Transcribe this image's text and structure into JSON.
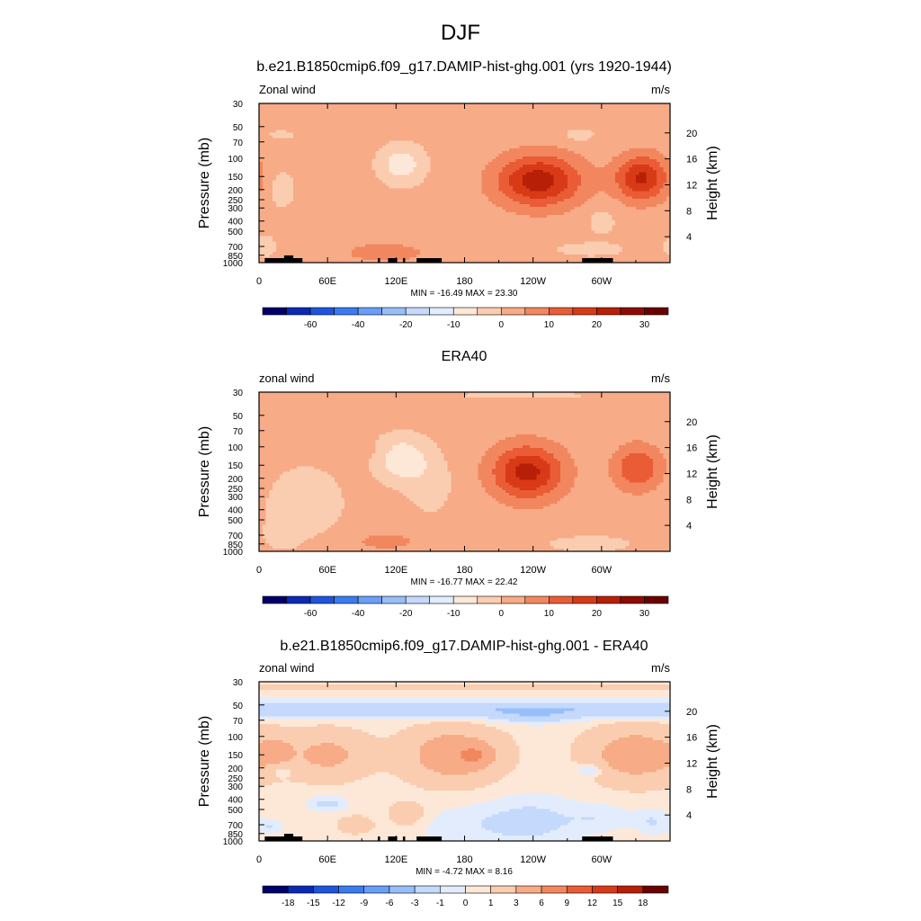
{
  "figure_title": "DJF",
  "colors": {
    "standard_scale": [
      "#00006a",
      "#0a2ab4",
      "#1f55dc",
      "#3a7cf0",
      "#6a9ef8",
      "#98bef9",
      "#c4d9fb",
      "#e2ecfd",
      "#fde8d8",
      "#fbcdb0",
      "#f7ab87",
      "#f2875f",
      "#ea5c36",
      "#d83a17",
      "#b71f07",
      "#8d0b02",
      "#6a0000"
    ],
    "difference_scale": [
      "#00006a",
      "#0a2ab4",
      "#1f55dc",
      "#3a7cf0",
      "#6a9ef8",
      "#98bef9",
      "#c4d9fb",
      "#e2ecfd",
      "#fde8d8",
      "#fbcdb0",
      "#f7ab87",
      "#f2875f",
      "#ea5c36",
      "#d83a17",
      "#b71f07",
      "#6a0000"
    ]
  },
  "chart_data": [
    {
      "type": "heatmap",
      "title": "b.e21.B1850cmip6.f09_g17.DAMIP-hist-ghg.001 (yrs 1920-1944)",
      "left_label": "Zonal wind",
      "right_label": "m/s",
      "ylabel": "Pressure (mb)",
      "ylabel_right": "Height (km)",
      "x_ticks": [
        "0",
        "60E",
        "120E",
        "180",
        "120W",
        "60W"
      ],
      "x_tick_values": [
        0,
        60,
        120,
        180,
        240,
        300
      ],
      "xlim": [
        0,
        360
      ],
      "y_ticks": [
        "30",
        "50",
        "70",
        "100",
        "150",
        "200",
        "250",
        "300",
        "400",
        "500",
        "700",
        "850",
        "1000"
      ],
      "y_tick_values": [
        30,
        50,
        70,
        100,
        150,
        200,
        250,
        300,
        400,
        500,
        700,
        850,
        1000
      ],
      "ylim": [
        30,
        1000
      ],
      "y_scale": "log",
      "height_ticks": [
        "20",
        "16",
        "12",
        "8",
        "4"
      ],
      "height_tick_values": [
        20,
        16,
        12,
        8,
        4
      ],
      "stats": "MIN = -16.49  MAX =  23.30",
      "min": -16.49,
      "max": 23.3,
      "colorbar_ticks": [
        "-60",
        "-40",
        "-20",
        "-10",
        "0",
        "10",
        "20",
        "30"
      ],
      "colorbar_levels": [
        -70,
        -60,
        -50,
        -40,
        -30,
        -20,
        -15,
        -10,
        -5,
        0,
        5,
        10,
        15,
        20,
        25,
        30,
        35
      ],
      "background": 2,
      "features": [
        {
          "lon": 245,
          "p": 165,
          "slon": 26,
          "slp": 0.4,
          "amp": 21
        },
        {
          "lon": 335,
          "p": 155,
          "slon": 16,
          "slp": 0.35,
          "amp": 19
        },
        {
          "lon": 300,
          "p": 400,
          "slon": 10,
          "slp": 0.25,
          "amp": -4
        },
        {
          "lon": 125,
          "p": 115,
          "slon": 14,
          "slp": 0.3,
          "amp": -10
        },
        {
          "lon": 20,
          "p": 200,
          "slon": 8,
          "slp": 0.3,
          "amp": -5
        },
        {
          "lon": 280,
          "p": 60,
          "slon": 12,
          "slp": 0.12,
          "amp": -4
        },
        {
          "lon": 20,
          "p": 60,
          "slon": 12,
          "slp": 0.1,
          "amp": -3
        },
        {
          "lon": 110,
          "p": 800,
          "slon": 40,
          "slp": 0.25,
          "amp": 4
        },
        {
          "lon": 290,
          "p": 750,
          "slon": 25,
          "slp": 0.12,
          "amp": -4
        },
        {
          "lon": 5,
          "p": 700,
          "slon": 8,
          "slp": 0.18,
          "amp": -5
        }
      ]
    },
    {
      "type": "heatmap",
      "title": "ERA40",
      "left_label": "zonal wind",
      "right_label": "m/s",
      "ylabel": "Pressure (mb)",
      "ylabel_right": "Height (km)",
      "x_ticks": [
        "0",
        "60E",
        "120E",
        "180",
        "120W",
        "60W"
      ],
      "x_tick_values": [
        0,
        60,
        120,
        180,
        240,
        300
      ],
      "xlim": [
        0,
        360
      ],
      "y_ticks": [
        "30",
        "50",
        "70",
        "100",
        "150",
        "200",
        "250",
        "300",
        "400",
        "500",
        "700",
        "850",
        "1000"
      ],
      "y_tick_values": [
        30,
        50,
        70,
        100,
        150,
        200,
        250,
        300,
        400,
        500,
        700,
        850,
        1000
      ],
      "ylim": [
        30,
        1000
      ],
      "y_scale": "log",
      "height_ticks": [
        "20",
        "16",
        "12",
        "8",
        "4"
      ],
      "height_tick_values": [
        20,
        16,
        12,
        8,
        4
      ],
      "stats": "MIN = -16.77  MAX =  22.42",
      "min": -16.77,
      "max": 22.42,
      "colorbar_ticks": [
        "-60",
        "-40",
        "-20",
        "-10",
        "0",
        "10",
        "20",
        "30"
      ],
      "colorbar_levels": [
        -70,
        -60,
        -50,
        -40,
        -30,
        -20,
        -15,
        -10,
        -5,
        0,
        5,
        10,
        15,
        20,
        25,
        30,
        35
      ],
      "background": 2,
      "features": [
        {
          "lon": 235,
          "p": 175,
          "slon": 22,
          "slp": 0.42,
          "amp": 20
        },
        {
          "lon": 332,
          "p": 160,
          "slon": 15,
          "slp": 0.35,
          "amp": 13
        },
        {
          "lon": 125,
          "p": 130,
          "slon": 16,
          "slp": 0.35,
          "amp": -11
        },
        {
          "lon": 40,
          "p": 350,
          "slon": 25,
          "slp": 0.6,
          "amp": -5
        },
        {
          "lon": 150,
          "p": 230,
          "slon": 15,
          "slp": 0.5,
          "amp": -4
        },
        {
          "lon": 80,
          "p": 110,
          "slon": 30,
          "slp": 0.1,
          "amp": 2
        },
        {
          "lon": 230,
          "p": 32,
          "slon": 60,
          "slp": 0.08,
          "amp": -3
        },
        {
          "lon": 110,
          "p": 800,
          "slon": 30,
          "slp": 0.2,
          "amp": 4
        },
        {
          "lon": 290,
          "p": 850,
          "slon": 30,
          "slp": 0.15,
          "amp": -4
        },
        {
          "lon": 20,
          "p": 700,
          "slon": 10,
          "slp": 0.2,
          "amp": -4
        }
      ]
    },
    {
      "type": "heatmap",
      "title": "b.e21.B1850cmip6.f09_g17.DAMIP-hist-ghg.001 - ERA40",
      "left_label": "zonal wind",
      "right_label": "m/s",
      "ylabel": "Pressure (mb)",
      "ylabel_right": "Height (km)",
      "x_ticks": [
        "0",
        "60E",
        "120E",
        "180",
        "120W",
        "60W"
      ],
      "x_tick_values": [
        0,
        60,
        120,
        180,
        240,
        300
      ],
      "xlim": [
        0,
        360
      ],
      "y_ticks": [
        "30",
        "50",
        "70",
        "100",
        "150",
        "200",
        "250",
        "300",
        "400",
        "500",
        "700",
        "850",
        "1000"
      ],
      "y_tick_values": [
        30,
        50,
        70,
        100,
        150,
        200,
        250,
        300,
        400,
        500,
        700,
        850,
        1000
      ],
      "ylim": [
        30,
        1000
      ],
      "y_scale": "log",
      "height_ticks": [
        "20",
        "16",
        "12",
        "8",
        "4"
      ],
      "height_tick_values": [
        20,
        16,
        12,
        8,
        4
      ],
      "stats": "MIN =  -4.72  MAX =   8.16",
      "min": -4.72,
      "max": 8.16,
      "colorbar_ticks": [
        "-18",
        "-15",
        "-12",
        "-9",
        "-6",
        "-3",
        "-1",
        "0",
        "1",
        "3",
        "6",
        "9",
        "12",
        "15",
        "18"
      ],
      "colorbar_levels": [
        -18,
        -15,
        -12,
        -9,
        -6,
        -3,
        -1,
        0,
        1,
        3,
        6,
        9,
        12,
        15,
        18
      ],
      "background": 0.5,
      "features": [
        {
          "lon": 180,
          "p": 55,
          "slon": 180,
          "slp": 0.13,
          "amp": -2.6
        },
        {
          "lon": 240,
          "p": 65,
          "slon": 25,
          "slp": 0.12,
          "amp": -1.8
        },
        {
          "lon": 180,
          "p": 33,
          "slon": 180,
          "slp": 0.05,
          "amp": 0.8
        },
        {
          "lon": 170,
          "p": 150,
          "slon": 28,
          "slp": 0.4,
          "amp": 4.5
        },
        {
          "lon": 190,
          "p": 150,
          "slon": 10,
          "slp": 0.15,
          "amp": 3
        },
        {
          "lon": 330,
          "p": 150,
          "slon": 28,
          "slp": 0.4,
          "amp": 4.3
        },
        {
          "lon": 60,
          "p": 150,
          "slon": 24,
          "slp": 0.35,
          "amp": 3.2
        },
        {
          "lon": 15,
          "p": 140,
          "slon": 10,
          "slp": 0.25,
          "amp": 2.4
        },
        {
          "lon": 20,
          "p": 210,
          "slon": 6,
          "slp": 0.1,
          "amp": -1.6
        },
        {
          "lon": 290,
          "p": 210,
          "slon": 8,
          "slp": 0.1,
          "amp": -2.4
        },
        {
          "lon": 60,
          "p": 440,
          "slon": 12,
          "slp": 0.12,
          "amp": -2
        },
        {
          "lon": 240,
          "p": 650,
          "slon": 30,
          "slp": 0.4,
          "amp": -1.8
        },
        {
          "lon": 180,
          "p": 700,
          "slon": 40,
          "slp": 0.3,
          "amp": -1
        },
        {
          "lon": 130,
          "p": 560,
          "slon": 12,
          "slp": 0.2,
          "amp": 1.8
        },
        {
          "lon": 85,
          "p": 700,
          "slon": 12,
          "slp": 0.15,
          "amp": 1.5
        },
        {
          "lon": 300,
          "p": 600,
          "slon": 20,
          "slp": 0.2,
          "amp": -1.2
        },
        {
          "lon": 345,
          "p": 650,
          "slon": 10,
          "slp": 0.2,
          "amp": -1.5
        },
        {
          "lon": 10,
          "p": 720,
          "slon": 8,
          "slp": 0.1,
          "amp": -1.5
        }
      ]
    }
  ]
}
